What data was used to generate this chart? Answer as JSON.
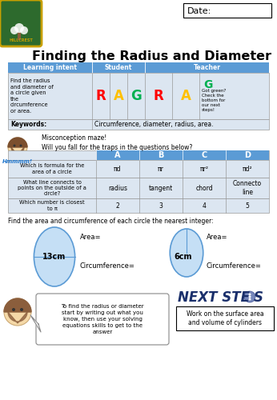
{
  "title": "Finding the Radius and Diameter",
  "date_label": "Date:",
  "school_name": "HILLCREST",
  "header_bg": "#5b9bd5",
  "header_text_color": "#ffffff",
  "table1_light_bg": "#dce6f1",
  "rag_col1_text": "Find the radius\nand diameter of\na circle given\nthe\ncircumference\nor area.",
  "student_RAG": [
    "R",
    "A",
    "G"
  ],
  "teacher_RAG": [
    "R",
    "A",
    "G"
  ],
  "teacher_note": "Got green?\nCheck the\nbottom for\nour next\nsteps!",
  "keywords_label": "Keywords:",
  "keywords_text": "Circumference, diameter, radius, area.",
  "rag_colors": {
    "R": "#ff0000",
    "A": "#ffc000",
    "G": "#00b050"
  },
  "misconception_title": "Misconception maze!\nWill you fall for the traps in the questions below?",
  "mc_cols": [
    "A",
    "B",
    "C",
    "D"
  ],
  "mc_rows": [
    [
      "Which is formula for the\narea of a circle",
      "πd",
      "πr",
      "πr²",
      "πd²"
    ],
    [
      "What line connects to\npoints on the outside of a\ncircle?",
      "radius",
      "tangent",
      "chord",
      "Connecto\nline"
    ],
    [
      "Which number is closest\nto π",
      "2",
      "3",
      "4",
      "5"
    ]
  ],
  "circle_instruction": "Find the area and circumference of each circle the nearest integer:",
  "circle1_label": "13cm",
  "circle2_label": "6cm",
  "area_label": "Area=",
  "circ_label": "Circumference=",
  "speech_text": "To find the radius or diameter\nstart by writing out what you\nknow, then use your solving\nequations skills to get to the\nanswer",
  "next_steps_text": "Work on the surface area\nand volume of cylinders",
  "circle_fill": "#c5dff5",
  "circle_edge": "#5b9bd5",
  "bg_color": "#ffffff",
  "shield_green": "#2d6a2d",
  "shield_gold": "#c8a000"
}
